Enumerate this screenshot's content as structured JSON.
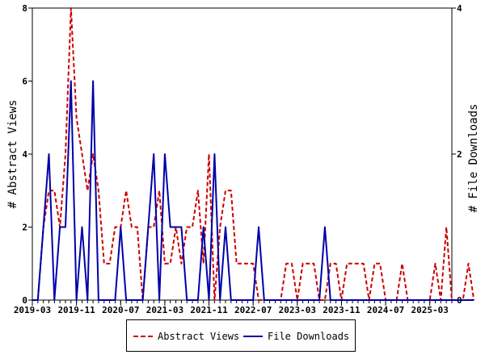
{
  "chart_data": {
    "type": "line",
    "x_start_month": "2019-03",
    "x_end_month": "2025-07",
    "x_tick_labels": [
      "2019-03",
      "2019-11",
      "2020-07",
      "2021-03",
      "2021-11",
      "2022-07",
      "2023-03",
      "2023-11",
      "2024-07",
      "2025-03"
    ],
    "xlabel": "",
    "ylabel_left": "# Abstract Views",
    "ylabel_right": "# File Downloads",
    "ylim_left": [
      0,
      8
    ],
    "ylim_right": [
      0,
      4
    ],
    "yticks_left": [
      0,
      2,
      4,
      6,
      8
    ],
    "yticks_right": [
      0,
      2,
      4
    ],
    "grid": false,
    "legend_position": "bottom",
    "series": [
      {
        "name": "Abstract Views",
        "axis": "left",
        "color": "#cc0000",
        "dash": "dashed",
        "values": [
          0,
          0,
          2,
          3,
          3,
          2,
          4,
          8,
          5,
          4,
          3,
          4,
          3,
          1,
          1,
          2,
          2,
          3,
          2,
          2,
          0,
          2,
          2,
          3,
          1,
          1,
          2,
          1,
          2,
          2,
          3,
          1,
          4,
          0,
          2,
          3,
          3,
          1,
          1,
          1,
          1,
          0,
          0,
          0,
          0,
          0,
          1,
          1,
          0,
          1,
          1,
          1,
          0,
          0,
          1,
          1,
          0,
          1,
          1,
          1,
          1,
          0,
          1,
          1,
          0,
          0,
          0,
          1,
          0,
          0,
          0,
          0,
          0,
          1,
          0,
          2,
          0,
          0,
          0,
          1,
          0
        ]
      },
      {
        "name": "File Downloads",
        "axis": "right",
        "color": "#0000aa",
        "dash": "solid",
        "values": [
          0,
          0,
          1,
          2,
          0,
          1,
          1,
          3,
          0,
          1,
          0,
          3,
          0,
          0,
          0,
          0,
          1,
          0,
          0,
          0,
          0,
          1,
          2,
          0,
          2,
          1,
          1,
          1,
          0,
          0,
          0,
          1,
          0,
          2,
          0,
          1,
          0,
          0,
          0,
          0,
          0,
          1,
          0,
          0,
          0,
          0,
          0,
          0,
          0,
          0,
          0,
          0,
          0,
          1,
          0,
          0,
          0,
          0,
          0,
          0,
          0,
          0,
          0,
          0,
          0,
          0,
          0,
          0,
          0,
          0,
          0,
          0,
          0,
          0,
          0,
          0,
          0,
          0,
          0,
          0,
          0
        ]
      }
    ]
  },
  "legend": {
    "items": [
      {
        "label": "Abstract Views",
        "color": "#cc0000",
        "style": "dashed"
      },
      {
        "label": "File Downloads",
        "color": "#0000aa",
        "style": "solid"
      }
    ]
  }
}
